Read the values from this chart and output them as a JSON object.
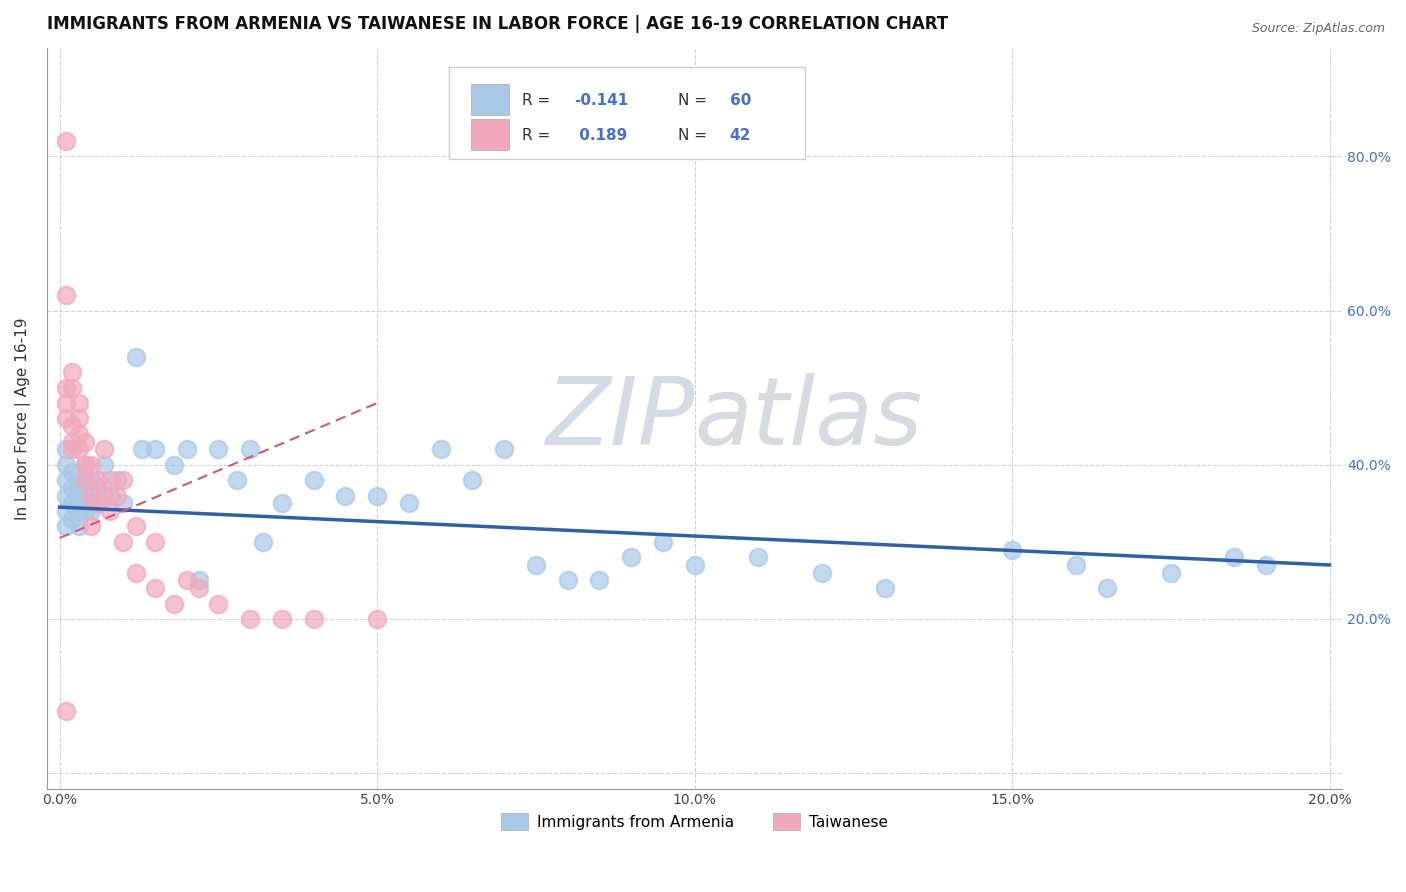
{
  "title": "IMMIGRANTS FROM ARMENIA VS TAIWANESE IN LABOR FORCE | AGE 16-19 CORRELATION CHART",
  "source": "Source: ZipAtlas.com",
  "ylabel": "In Labor Force | Age 16-19",
  "xlim": [
    -0.002,
    0.202
  ],
  "ylim": [
    -0.02,
    0.94
  ],
  "xticks": [
    0.0,
    0.05,
    0.1,
    0.15,
    0.2
  ],
  "xtick_labels": [
    "0.0%",
    "5.0%",
    "10.0%",
    "15.0%",
    "20.0%"
  ],
  "yticks": [
    0.0,
    0.2,
    0.4,
    0.6,
    0.8
  ],
  "ytick_labels_left": [
    "",
    "",
    "",
    "",
    ""
  ],
  "ytick_labels_right": [
    "",
    "20.0%",
    "40.0%",
    "60.0%",
    "80.0%"
  ],
  "legend1_label": "Immigrants from Armenia",
  "legend2_label": "Taiwanese",
  "r1": -0.141,
  "n1": 60,
  "r2": 0.189,
  "n2": 42,
  "blue_color": "#a8c8e8",
  "pink_color": "#f2a8bc",
  "blue_line_color": "#3060a8",
  "pink_line_color": "#d05878",
  "watermark_zip": "ZIP",
  "watermark_atlas": "atlas",
  "title_fontsize": 12,
  "axis_label_fontsize": 11,
  "tick_fontsize": 10,
  "armenia_x": [
    0.001,
    0.001,
    0.001,
    0.001,
    0.001,
    0.001,
    0.002,
    0.002,
    0.002,
    0.002,
    0.003,
    0.003,
    0.003,
    0.003,
    0.003,
    0.004,
    0.004,
    0.004,
    0.004,
    0.005,
    0.005,
    0.005,
    0.006,
    0.007,
    0.008,
    0.009,
    0.01,
    0.012,
    0.013,
    0.015,
    0.018,
    0.02,
    0.022,
    0.025,
    0.028,
    0.03,
    0.032,
    0.035,
    0.04,
    0.045,
    0.05,
    0.055,
    0.06,
    0.065,
    0.07,
    0.075,
    0.08,
    0.085,
    0.09,
    0.095,
    0.1,
    0.11,
    0.12,
    0.13,
    0.15,
    0.16,
    0.165,
    0.175,
    0.185,
    0.19
  ],
  "armenia_y": [
    0.36,
    0.38,
    0.4,
    0.34,
    0.32,
    0.42,
    0.35,
    0.37,
    0.39,
    0.33,
    0.36,
    0.34,
    0.32,
    0.38,
    0.36,
    0.38,
    0.36,
    0.34,
    0.4,
    0.35,
    0.34,
    0.38,
    0.37,
    0.4,
    0.36,
    0.38,
    0.35,
    0.54,
    0.42,
    0.42,
    0.4,
    0.42,
    0.25,
    0.42,
    0.38,
    0.42,
    0.3,
    0.35,
    0.38,
    0.36,
    0.36,
    0.35,
    0.42,
    0.38,
    0.42,
    0.27,
    0.25,
    0.25,
    0.28,
    0.3,
    0.27,
    0.28,
    0.26,
    0.24,
    0.29,
    0.27,
    0.24,
    0.26,
    0.28,
    0.27
  ],
  "taiwanese_x": [
    0.001,
    0.001,
    0.001,
    0.001,
    0.001,
    0.001,
    0.002,
    0.002,
    0.002,
    0.002,
    0.002,
    0.003,
    0.003,
    0.003,
    0.003,
    0.004,
    0.004,
    0.004,
    0.005,
    0.005,
    0.005,
    0.006,
    0.006,
    0.007,
    0.007,
    0.008,
    0.008,
    0.009,
    0.01,
    0.01,
    0.012,
    0.012,
    0.015,
    0.015,
    0.018,
    0.02,
    0.022,
    0.025,
    0.03,
    0.035,
    0.04,
    0.05
  ],
  "taiwanese_y": [
    0.82,
    0.62,
    0.5,
    0.48,
    0.46,
    0.08,
    0.52,
    0.5,
    0.45,
    0.43,
    0.42,
    0.48,
    0.46,
    0.44,
    0.42,
    0.43,
    0.4,
    0.38,
    0.4,
    0.36,
    0.32,
    0.38,
    0.35,
    0.42,
    0.36,
    0.38,
    0.34,
    0.36,
    0.38,
    0.3,
    0.32,
    0.26,
    0.3,
    0.24,
    0.22,
    0.25,
    0.24,
    0.22,
    0.2,
    0.2,
    0.2,
    0.2
  ]
}
